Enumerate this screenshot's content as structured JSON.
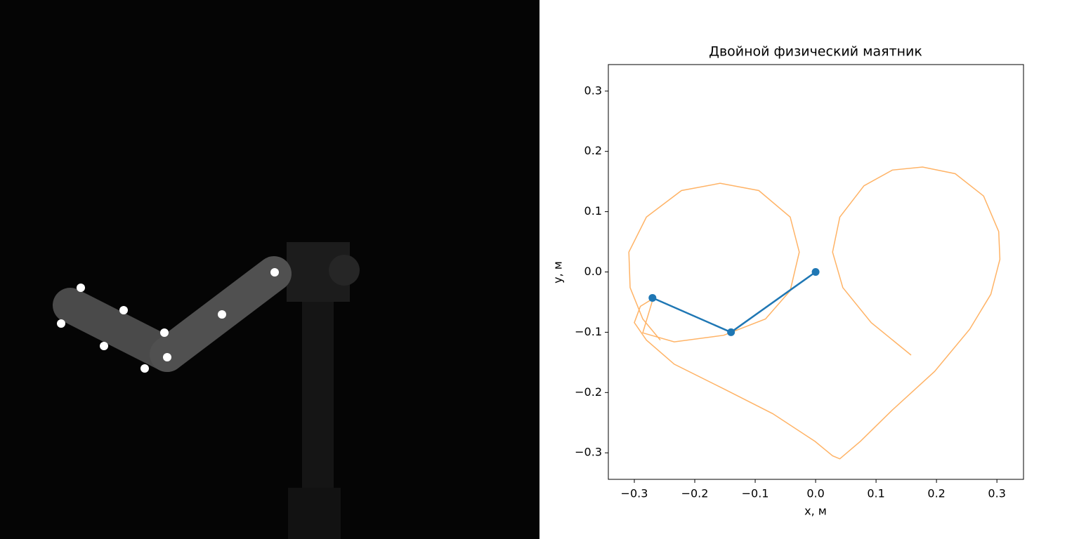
{
  "chart_data": {
    "type": "line",
    "title": "Двойной физический маятник",
    "xlabel": "x, м",
    "ylabel": "y, м",
    "xlim": [
      -0.343,
      0.344
    ],
    "ylim": [
      -0.344,
      0.344
    ],
    "xticks": [
      {
        "value": -0.3,
        "label": "−0.3"
      },
      {
        "value": -0.2,
        "label": "−0.2"
      },
      {
        "value": -0.1,
        "label": "−0.1"
      },
      {
        "value": 0,
        "label": "0.0"
      },
      0.1,
      0.2,
      0.3
    ],
    "yticks": [
      {
        "value": -0.3,
        "label": "−0.3"
      },
      {
        "value": -0.2,
        "label": "−0.2"
      },
      {
        "value": -0.1,
        "label": "−0.1"
      },
      {
        "value": 0,
        "label": "0.0"
      },
      0.1,
      0.2,
      0.3
    ],
    "series": [
      {
        "color": "#ffb366",
        "markers": false,
        "x": [
          0.158,
          0.092,
          0.045,
          0.028,
          0.04,
          0.08,
          0.127,
          0.177,
          0.231,
          0.278,
          0.303,
          0.305,
          0.29,
          0.255,
          0.197,
          0.127,
          0.074,
          0.04,
          0.028,
          -0.001,
          -0.071,
          -0.152,
          -0.234,
          -0.28,
          -0.3,
          -0.29,
          -0.269,
          -0.286,
          -0.234,
          -0.152,
          -0.083,
          -0.042,
          -0.027,
          -0.042,
          -0.094,
          -0.158,
          -0.222,
          -0.28,
          -0.309,
          -0.307,
          -0.286,
          -0.257
        ],
        "values": [
          -0.138,
          -0.084,
          -0.026,
          0.033,
          0.091,
          0.143,
          0.169,
          0.174,
          0.163,
          0.126,
          0.067,
          0.021,
          -0.037,
          -0.095,
          -0.165,
          -0.229,
          -0.281,
          -0.31,
          -0.305,
          -0.281,
          -0.235,
          -0.194,
          -0.153,
          -0.113,
          -0.084,
          -0.057,
          -0.044,
          -0.101,
          -0.116,
          -0.105,
          -0.078,
          -0.031,
          0.033,
          0.091,
          0.135,
          0.147,
          0.135,
          0.091,
          0.033,
          -0.026,
          -0.078,
          -0.113
        ]
      },
      {
        "color": "#1f77b4",
        "markers": true,
        "x": [
          0,
          -0.14,
          -0.27
        ],
        "values": [
          0,
          -0.1,
          -0.043
        ]
      }
    ]
  }
}
